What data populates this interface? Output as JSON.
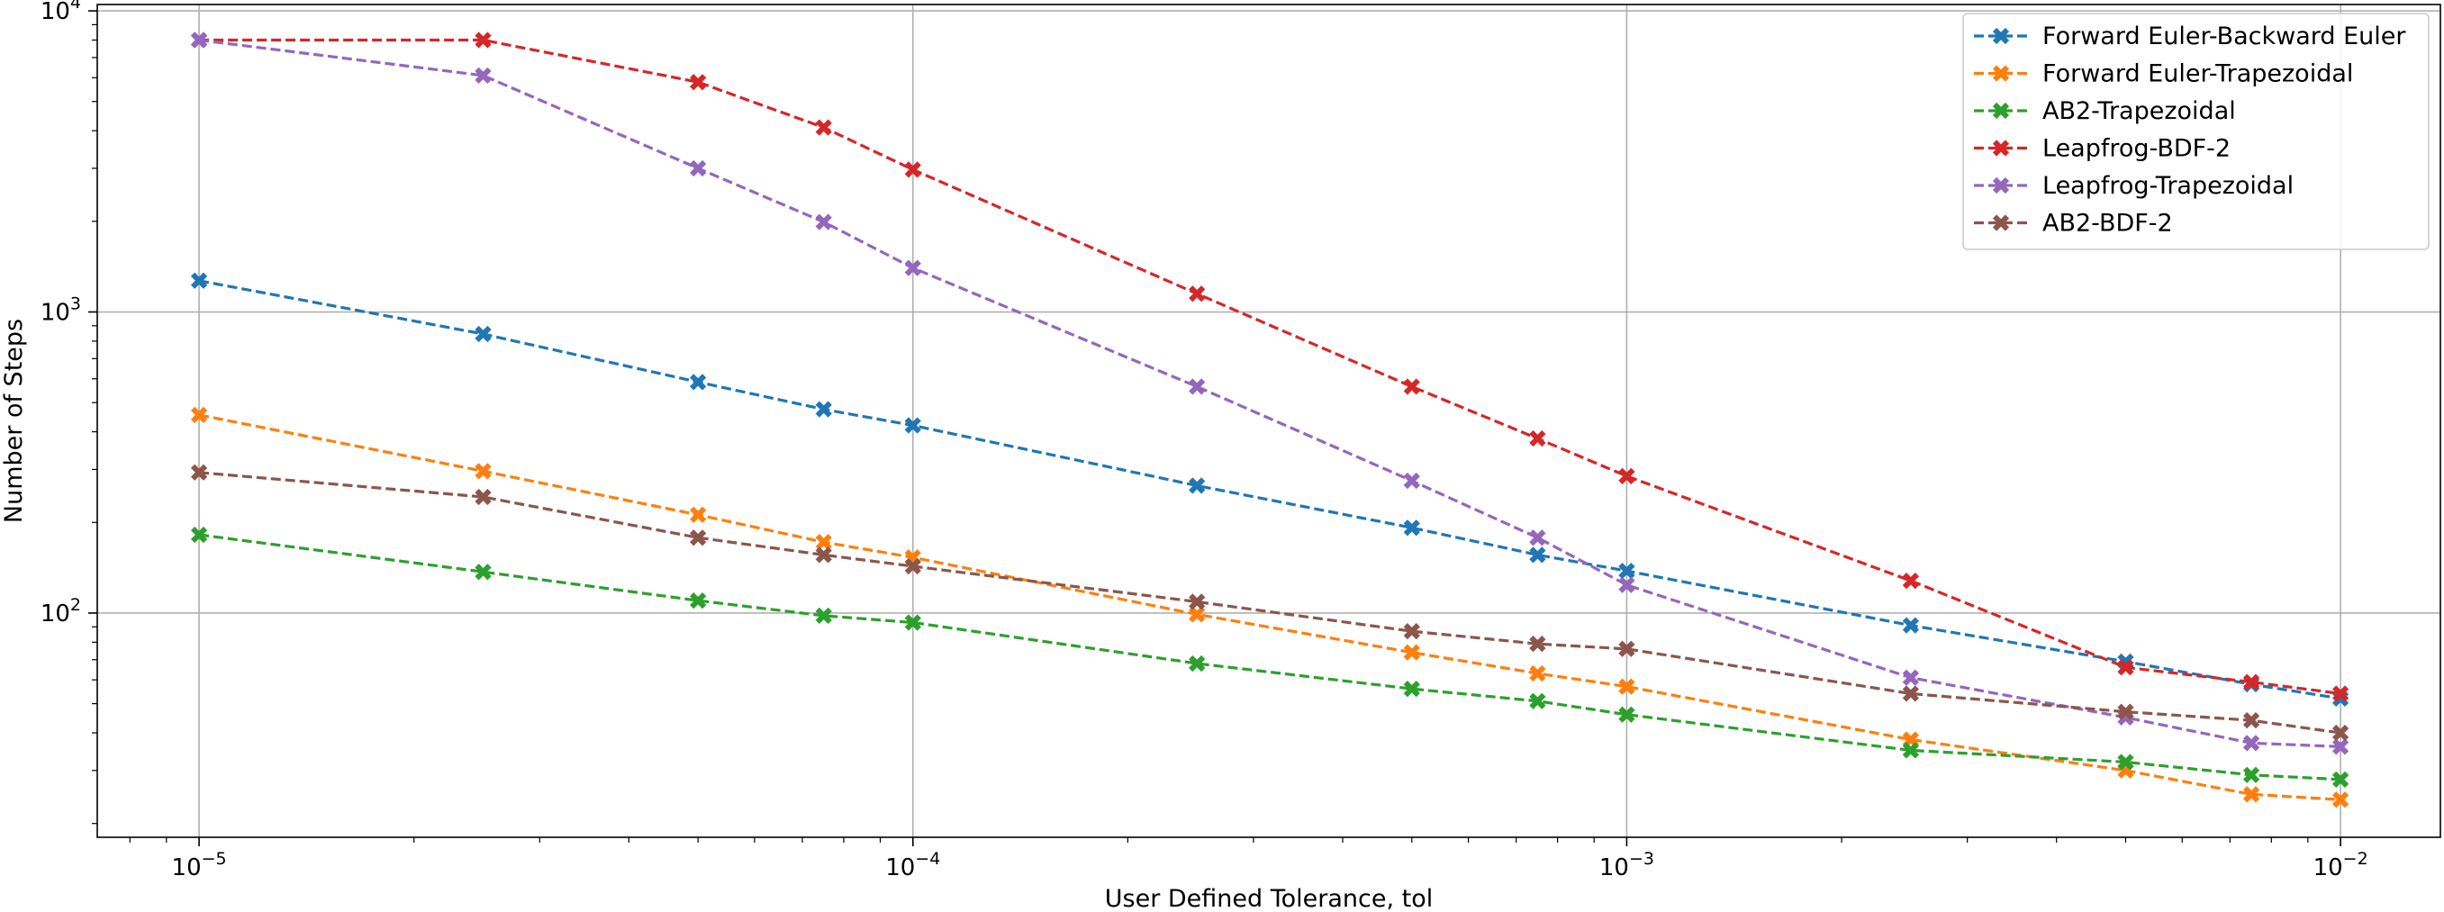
{
  "chart_data": {
    "type": "line",
    "xlabel": "User Defined Tolerance, tol",
    "ylabel": "Number of Steps",
    "x_scale": "log",
    "y_scale": "log",
    "xlim": [
      7.2e-06,
      0.0138
    ],
    "ylim": [
      18,
      10500
    ],
    "x_ticks": [
      {
        "value": 1e-05,
        "base": "10",
        "exp": "−5"
      },
      {
        "value": 0.0001,
        "base": "10",
        "exp": "−4"
      },
      {
        "value": 0.001,
        "base": "10",
        "exp": "−3"
      },
      {
        "value": 0.01,
        "base": "10",
        "exp": "−2"
      }
    ],
    "y_ticks": [
      {
        "value": 100,
        "base": "10",
        "exp": "2"
      },
      {
        "value": 1000,
        "base": "10",
        "exp": "3"
      },
      {
        "value": 10000,
        "base": "10",
        "exp": "4"
      }
    ],
    "grid": true,
    "legend_position": "top-right",
    "x": [
      1e-05,
      2.5e-05,
      5e-05,
      7.5e-05,
      0.0001,
      0.00025,
      0.0005,
      0.00075,
      0.001,
      0.0025,
      0.005,
      0.0075,
      0.01
    ],
    "series": [
      {
        "name": "Forward Euler-Backward Euler",
        "color": "#1f77b4",
        "values": [
          1270,
          845,
          585,
          475,
          420,
          265,
          192,
          156,
          138,
          91,
          69,
          58,
          52
        ]
      },
      {
        "name": "Forward Euler-Trapezoidal",
        "color": "#ff7f0e",
        "values": [
          455,
          296,
          212,
          172,
          153,
          99,
          74,
          63,
          57,
          38,
          30,
          25,
          24
        ]
      },
      {
        "name": "AB2-Trapezoidal",
        "color": "#2ca02c",
        "values": [
          182,
          137,
          110,
          98,
          93,
          68,
          56,
          51,
          46,
          35,
          32,
          29,
          28
        ]
      },
      {
        "name": "Leapfrog-BDF-2",
        "color": "#d62728",
        "values": [
          8000,
          8000,
          5800,
          4100,
          2970,
          1150,
          565,
          380,
          285,
          128,
          66,
          59,
          54
        ]
      },
      {
        "name": "Leapfrog-Trapezoidal",
        "color": "#9467bd",
        "values": [
          8000,
          6100,
          3000,
          1990,
          1400,
          565,
          275,
          178,
          124,
          61,
          45,
          37,
          36
        ]
      },
      {
        "name": "AB2-BDF-2",
        "color": "#8c564b",
        "values": [
          293,
          243,
          178,
          156,
          143,
          109,
          87,
          79,
          76,
          54,
          47,
          44,
          40
        ]
      }
    ]
  }
}
